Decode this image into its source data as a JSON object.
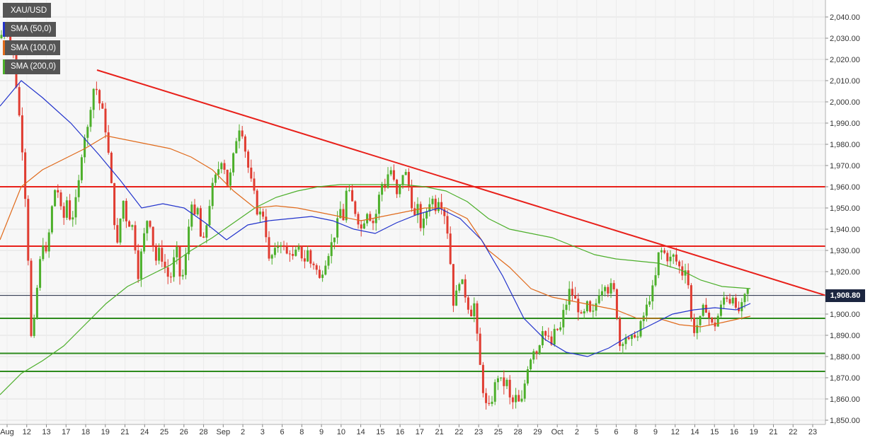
{
  "chart_data": {
    "type": "candlestick",
    "instrument": "XAU/USD",
    "ylim": [
      1848,
      2048
    ],
    "y_ticks": [
      1850,
      1860,
      1870,
      1880,
      1890,
      1900,
      1910,
      1920,
      1930,
      1940,
      1950,
      1960,
      1970,
      1980,
      1990,
      2000,
      2010,
      2020,
      2030,
      2040
    ],
    "y_tick_labels": [
      "1,850.00",
      "1,860.00",
      "1,870.00",
      "1,880.00",
      "1,890.00",
      "1,900.00",
      "1,910.00",
      "1,920.00",
      "1,930.00",
      "1,940.00",
      "1,950.00",
      "1,960.00",
      "1,970.00",
      "1,980.00",
      "1,990.00",
      "2,000.00",
      "2,010.00",
      "2,020.00",
      "2,030.00",
      "2,040.00"
    ],
    "x_ticks": [
      "Aug",
      "12",
      "13",
      "17",
      "18",
      "19",
      "21",
      "24",
      "25",
      "26",
      "28",
      "Sep",
      "2",
      "3",
      "6",
      "8",
      "9",
      "10",
      "14",
      "15",
      "16",
      "17",
      "21",
      "22",
      "23",
      "25",
      "28",
      "29",
      "Oct",
      "2",
      "5",
      "6",
      "8",
      "9",
      "12",
      "14",
      "15",
      "16",
      "19",
      "21",
      "22",
      "23"
    ],
    "last_price": 1908.8,
    "last_price_label": "1,908.80",
    "legend": [
      {
        "name": "XAU/USD",
        "color": "#555555"
      },
      {
        "name": "SMA (50,0)",
        "color": "#2233cc"
      },
      {
        "name": "SMA (100,0)",
        "color": "#e06a1b"
      },
      {
        "name": "SMA (200,0)",
        "color": "#4caf2a"
      }
    ],
    "colors": {
      "up": "#4caf2a",
      "down": "#e03c31",
      "sma50": "#2233cc",
      "sma100": "#e06a1b",
      "sma200": "#4caf2a",
      "resistance": "#e8201a",
      "support": "#2e8b1e",
      "last_price_line": "#1c2640"
    },
    "close_path": [
      [
        0,
        2030
      ],
      [
        5,
        2034
      ],
      [
        10,
        2035
      ],
      [
        15,
        2028
      ],
      [
        20,
        2020
      ],
      [
        25,
        2000
      ],
      [
        30,
        1985
      ],
      [
        35,
        1960
      ],
      [
        40,
        1925
      ],
      [
        45,
        1880
      ],
      [
        50,
        1905
      ],
      [
        55,
        1920
      ],
      [
        60,
        1935
      ],
      [
        65,
        1928
      ],
      [
        70,
        1940
      ],
      [
        75,
        1955
      ],
      [
        80,
        1962
      ],
      [
        85,
        1950
      ],
      [
        90,
        1945
      ],
      [
        95,
        1955
      ],
      [
        100,
        1942
      ],
      [
        105,
        1950
      ],
      [
        110,
        1958
      ],
      [
        115,
        1975
      ],
      [
        120,
        1985
      ],
      [
        125,
        1988
      ],
      [
        130,
        2005
      ],
      [
        135,
        2008
      ],
      [
        140,
        2000
      ],
      [
        145,
        1995
      ],
      [
        150,
        1985
      ],
      [
        155,
        1970
      ],
      [
        160,
        1950
      ],
      [
        165,
        1930
      ],
      [
        170,
        1945
      ],
      [
        175,
        1955
      ],
      [
        180,
        1940
      ],
      [
        185,
        1945
      ],
      [
        190,
        1935
      ],
      [
        195,
        1918
      ],
      [
        200,
        1930
      ],
      [
        205,
        1940
      ],
      [
        210,
        1948
      ],
      [
        215,
        1935
      ],
      [
        220,
        1925
      ],
      [
        225,
        1930
      ],
      [
        230,
        1925
      ],
      [
        235,
        1920
      ],
      [
        240,
        1915
      ],
      [
        245,
        1925
      ],
      [
        250,
        1930
      ],
      [
        255,
        1915
      ],
      [
        260,
        1920
      ],
      [
        265,
        1935
      ],
      [
        270,
        1955
      ],
      [
        275,
        1945
      ],
      [
        280,
        1950
      ],
      [
        285,
        1930
      ],
      [
        290,
        1938
      ],
      [
        295,
        1950
      ],
      [
        300,
        1960
      ],
      [
        305,
        1965
      ],
      [
        310,
        1970
      ],
      [
        315,
        1975
      ],
      [
        320,
        1960
      ],
      [
        325,
        1965
      ],
      [
        330,
        1975
      ],
      [
        335,
        1985
      ],
      [
        340,
        1990
      ],
      [
        345,
        1980
      ],
      [
        350,
        1970
      ],
      [
        355,
        1962
      ],
      [
        360,
        1955
      ],
      [
        365,
        1945
      ],
      [
        370,
        1950
      ],
      [
        375,
        1940
      ],
      [
        380,
        1925
      ],
      [
        385,
        1928
      ],
      [
        390,
        1930
      ],
      [
        395,
        1935
      ],
      [
        400,
        1932
      ],
      [
        405,
        1928
      ],
      [
        410,
        1930
      ],
      [
        415,
        1925
      ],
      [
        420,
        1932
      ],
      [
        425,
        1928
      ],
      [
        430,
        1925
      ],
      [
        435,
        1930
      ],
      [
        440,
        1922
      ],
      [
        445,
        1925
      ],
      [
        450,
        1915
      ],
      [
        455,
        1920
      ],
      [
        460,
        1925
      ],
      [
        465,
        1930
      ],
      [
        470,
        1935
      ],
      [
        475,
        1940
      ],
      [
        480,
        1950
      ],
      [
        485,
        1945
      ],
      [
        490,
        1960
      ],
      [
        495,
        1955
      ],
      [
        500,
        1950
      ],
      [
        505,
        1945
      ],
      [
        510,
        1940
      ],
      [
        515,
        1945
      ],
      [
        520,
        1950
      ],
      [
        525,
        1942
      ],
      [
        530,
        1945
      ],
      [
        535,
        1955
      ],
      [
        540,
        1962
      ],
      [
        545,
        1960
      ],
      [
        550,
        1970
      ],
      [
        555,
        1965
      ],
      [
        560,
        1955
      ],
      [
        565,
        1960
      ],
      [
        570,
        1968
      ],
      [
        575,
        1965
      ],
      [
        580,
        1955
      ],
      [
        585,
        1945
      ],
      [
        590,
        1950
      ],
      [
        595,
        1940
      ],
      [
        600,
        1945
      ],
      [
        605,
        1952
      ],
      [
        610,
        1955
      ],
      [
        615,
        1950
      ],
      [
        620,
        1955
      ],
      [
        625,
        1950
      ],
      [
        630,
        1945
      ],
      [
        635,
        1930
      ],
      [
        640,
        1905
      ],
      [
        645,
        1910
      ],
      [
        650,
        1918
      ],
      [
        655,
        1912
      ],
      [
        660,
        1905
      ],
      [
        665,
        1900
      ],
      [
        670,
        1905
      ],
      [
        675,
        1885
      ],
      [
        680,
        1870
      ],
      [
        685,
        1858
      ],
      [
        690,
        1855
      ],
      [
        695,
        1860
      ],
      [
        700,
        1868
      ],
      [
        705,
        1872
      ],
      [
        710,
        1865
      ],
      [
        715,
        1870
      ],
      [
        720,
        1860
      ],
      [
        725,
        1858
      ],
      [
        730,
        1862
      ],
      [
        735,
        1855
      ],
      [
        740,
        1865
      ],
      [
        745,
        1875
      ],
      [
        750,
        1880
      ],
      [
        755,
        1885
      ],
      [
        760,
        1880
      ],
      [
        765,
        1895
      ],
      [
        770,
        1890
      ],
      [
        775,
        1888
      ],
      [
        780,
        1885
      ],
      [
        785,
        1895
      ],
      [
        790,
        1890
      ],
      [
        795,
        1900
      ],
      [
        800,
        1905
      ],
      [
        805,
        1912
      ],
      [
        810,
        1908
      ],
      [
        815,
        1905
      ],
      [
        820,
        1898
      ],
      [
        825,
        1900
      ],
      [
        830,
        1905
      ],
      [
        835,
        1898
      ],
      [
        840,
        1902
      ],
      [
        845,
        1910
      ],
      [
        850,
        1912
      ],
      [
        855,
        1915
      ],
      [
        860,
        1910
      ],
      [
        865,
        1915
      ],
      [
        870,
        1905
      ],
      [
        875,
        1885
      ],
      [
        880,
        1888
      ],
      [
        885,
        1890
      ],
      [
        890,
        1885
      ],
      [
        895,
        1892
      ],
      [
        900,
        1888
      ],
      [
        905,
        1895
      ],
      [
        910,
        1900
      ],
      [
        915,
        1905
      ],
      [
        920,
        1910
      ],
      [
        925,
        1915
      ],
      [
        930,
        1928
      ],
      [
        935,
        1930
      ],
      [
        940,
        1928
      ],
      [
        945,
        1925
      ],
      [
        950,
        1928
      ],
      [
        955,
        1925
      ],
      [
        960,
        1922
      ],
      [
        965,
        1918
      ],
      [
        970,
        1925
      ],
      [
        975,
        1900
      ],
      [
        980,
        1892
      ],
      [
        985,
        1895
      ],
      [
        990,
        1898
      ],
      [
        995,
        1905
      ],
      [
        1000,
        1900
      ],
      [
        1005,
        1895
      ],
      [
        1010,
        1895
      ],
      [
        1015,
        1900
      ],
      [
        1020,
        1905
      ],
      [
        1025,
        1910
      ],
      [
        1030,
        1905
      ],
      [
        1035,
        1910
      ],
      [
        1040,
        1900
      ],
      [
        1045,
        1902
      ],
      [
        1050,
        1905
      ],
      [
        1055,
        1912
      ],
      [
        1060,
        1908.8
      ]
    ],
    "sma50": [
      [
        0,
        1998
      ],
      [
        30,
        2010
      ],
      [
        60,
        2002
      ],
      [
        100,
        1990
      ],
      [
        140,
        1975
      ],
      [
        170,
        1963
      ],
      [
        200,
        1950
      ],
      [
        230,
        1952
      ],
      [
        260,
        1950
      ],
      [
        290,
        1943
      ],
      [
        320,
        1935
      ],
      [
        350,
        1942
      ],
      [
        380,
        1944
      ],
      [
        410,
        1945
      ],
      [
        440,
        1946
      ],
      [
        470,
        1944
      ],
      [
        500,
        1940
      ],
      [
        530,
        1938
      ],
      [
        560,
        1943
      ],
      [
        590,
        1947
      ],
      [
        620,
        1950
      ],
      [
        650,
        1945
      ],
      [
        680,
        1935
      ],
      [
        710,
        1918
      ],
      [
        740,
        1898
      ],
      [
        770,
        1888
      ],
      [
        800,
        1882
      ],
      [
        830,
        1880
      ],
      [
        860,
        1884
      ],
      [
        890,
        1890
      ],
      [
        920,
        1895
      ],
      [
        950,
        1900
      ],
      [
        980,
        1902
      ],
      [
        1010,
        1903
      ],
      [
        1040,
        1902
      ],
      [
        1060,
        1905
      ]
    ],
    "sma100": [
      [
        0,
        1935
      ],
      [
        30,
        1960
      ],
      [
        60,
        1968
      ],
      [
        90,
        1973
      ],
      [
        120,
        1978
      ],
      [
        150,
        1984
      ],
      [
        180,
        1982
      ],
      [
        210,
        1980
      ],
      [
        240,
        1978
      ],
      [
        270,
        1974
      ],
      [
        300,
        1968
      ],
      [
        330,
        1958
      ],
      [
        360,
        1950
      ],
      [
        390,
        1951
      ],
      [
        420,
        1950
      ],
      [
        450,
        1948
      ],
      [
        480,
        1946
      ],
      [
        510,
        1944
      ],
      [
        540,
        1946
      ],
      [
        570,
        1948
      ],
      [
        600,
        1950
      ],
      [
        630,
        1950
      ],
      [
        660,
        1945
      ],
      [
        690,
        1930
      ],
      [
        720,
        1922
      ],
      [
        750,
        1912
      ],
      [
        780,
        1908
      ],
      [
        810,
        1906
      ],
      [
        840,
        1904
      ],
      [
        870,
        1902
      ],
      [
        900,
        1898
      ],
      [
        930,
        1898
      ],
      [
        960,
        1895
      ],
      [
        990,
        1894
      ],
      [
        1020,
        1896
      ],
      [
        1060,
        1899
      ]
    ],
    "sma200": [
      [
        0,
        1862
      ],
      [
        30,
        1872
      ],
      [
        60,
        1878
      ],
      [
        90,
        1885
      ],
      [
        120,
        1895
      ],
      [
        150,
        1905
      ],
      [
        180,
        1913
      ],
      [
        210,
        1918
      ],
      [
        240,
        1923
      ],
      [
        270,
        1930
      ],
      [
        300,
        1936
      ],
      [
        330,
        1943
      ],
      [
        360,
        1950
      ],
      [
        390,
        1955
      ],
      [
        420,
        1958
      ],
      [
        450,
        1960
      ],
      [
        480,
        1961
      ],
      [
        510,
        1961
      ],
      [
        540,
        1961
      ],
      [
        570,
        1961
      ],
      [
        600,
        1960
      ],
      [
        630,
        1958
      ],
      [
        660,
        1953
      ],
      [
        690,
        1945
      ],
      [
        720,
        1940
      ],
      [
        750,
        1938
      ],
      [
        780,
        1936
      ],
      [
        810,
        1932
      ],
      [
        840,
        1928
      ],
      [
        870,
        1926
      ],
      [
        900,
        1925
      ],
      [
        930,
        1924
      ],
      [
        960,
        1921
      ],
      [
        990,
        1916
      ],
      [
        1020,
        1913
      ],
      [
        1060,
        1912
      ]
    ],
    "trendline_descending": {
      "from": [
        137,
        2015
      ],
      "to": [
        1166,
        1908.8
      ]
    },
    "resistance_levels": [
      1960,
      1932
    ],
    "support_levels": [
      1898,
      1881.5,
      1873
    ]
  }
}
